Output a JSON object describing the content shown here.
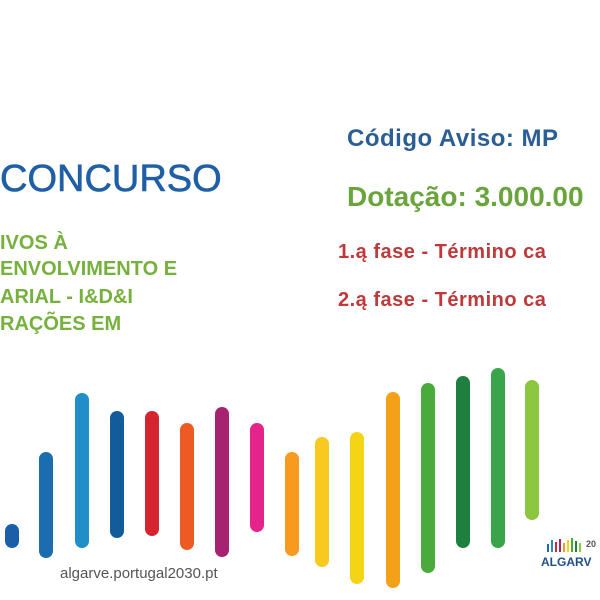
{
  "headline": "CONCURSO",
  "description_lines": [
    "IVOS À",
    "ENVOLVIMENTO E",
    "ARIAL - I&D&I",
    "RAÇÕES EM"
  ],
  "notice_code": "Código Aviso: MP",
  "funding": "Dotação: 3.000.00",
  "phases": [
    "1.ą fase - Término ca",
    "2.ą fase - Término ca"
  ],
  "website": "algarve.portugal2030.pt",
  "logo": {
    "year": "20",
    "region": "ALGARV"
  }
}
